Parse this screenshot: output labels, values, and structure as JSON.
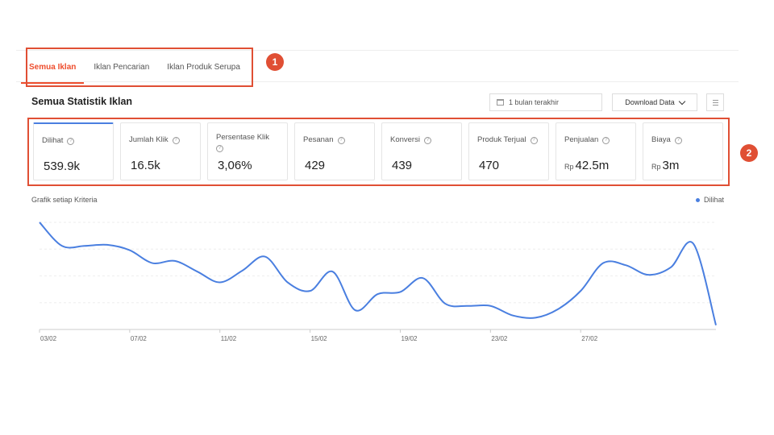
{
  "tabs": [
    {
      "label": "Semua Iklan",
      "active": true
    },
    {
      "label": "Iklan Pencarian",
      "active": false
    },
    {
      "label": "Iklan Produk Serupa",
      "active": false
    }
  ],
  "callouts": [
    "1",
    "2"
  ],
  "header": {
    "title": "Semua Statistik Iklan",
    "date_range": "1 bulan terakhir",
    "download_label": "Download Data"
  },
  "metrics": [
    {
      "label": "Dilihat",
      "value": "539.9k",
      "currency": ""
    },
    {
      "label": "Jumlah Klik",
      "value": "16.5k",
      "currency": ""
    },
    {
      "label": "Persentase Klik",
      "value": "3,06%",
      "currency": ""
    },
    {
      "label": "Pesanan",
      "value": "429",
      "currency": ""
    },
    {
      "label": "Konversi",
      "value": "439",
      "currency": ""
    },
    {
      "label": "Produk Terjual",
      "value": "470",
      "currency": ""
    },
    {
      "label": "Penjualan",
      "value": "42.5m",
      "currency": "Rp"
    },
    {
      "label": "Biaya",
      "value": "3m",
      "currency": "Rp"
    }
  ],
  "chart": {
    "title": "Grafik setiap Kriteria",
    "legend": "Dilihat",
    "color": "#4a7fe0"
  },
  "chart_data": {
    "type": "line",
    "title": "Grafik setiap Kriteria",
    "xlabel": "",
    "ylabel": "",
    "tick_labels": [
      "03/02",
      "07/02",
      "11/02",
      "15/02",
      "19/02",
      "23/02",
      "27/02"
    ],
    "x": [
      "03/02",
      "04/02",
      "05/02",
      "06/02",
      "07/02",
      "08/02",
      "09/02",
      "10/02",
      "11/02",
      "12/02",
      "13/02",
      "14/02",
      "15/02",
      "16/02",
      "17/02",
      "18/02",
      "19/02",
      "20/02",
      "21/02",
      "22/02",
      "23/02",
      "24/02",
      "25/02",
      "26/02",
      "27/02",
      "28/02",
      "29/02",
      "01/03",
      "02/03",
      "03/03",
      "04/03"
    ],
    "series": [
      {
        "name": "Dilihat",
        "values": [
          100,
          78,
          78,
          79,
          74,
          62,
          64,
          54,
          44,
          55,
          68,
          44,
          36,
          54,
          18,
          33,
          35,
          48,
          24,
          22,
          22,
          13,
          11,
          19,
          36,
          62,
          60,
          51,
          58,
          80,
          4
        ]
      }
    ],
    "ylim": [
      0,
      100
    ],
    "grid": true,
    "legend_position": "top-right"
  }
}
